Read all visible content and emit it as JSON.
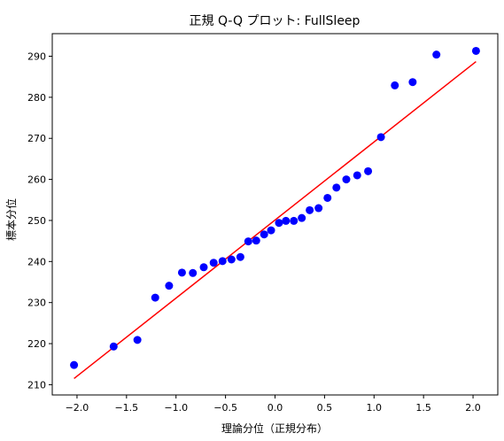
{
  "chart_data": {
    "type": "scatter",
    "title": "正規 Q-Q プロット: FullSleep",
    "xlabel": "理論分位（正規分布）",
    "ylabel": "標本分位",
    "xlim": [
      -2.25,
      2.25
    ],
    "ylim": [
      207.5,
      295.5
    ],
    "xticks": [
      -2.0,
      -1.5,
      -1.0,
      -0.5,
      0.0,
      0.5,
      1.0,
      1.5,
      2.0
    ],
    "xtick_labels": [
      "−2.0",
      "−1.5",
      "−1.0",
      "−0.5",
      "0.0",
      "0.5",
      "1.0",
      "1.5",
      "2.0"
    ],
    "yticks": [
      210,
      220,
      230,
      240,
      250,
      260,
      270,
      280,
      290
    ],
    "ytick_labels": [
      "210",
      "220",
      "230",
      "240",
      "250",
      "260",
      "270",
      "280",
      "290"
    ],
    "grid": false,
    "point_color": "#0000ff",
    "line_color": "#ff0000",
    "points": [
      {
        "x": -2.03,
        "y": 214.8
      },
      {
        "x": -1.63,
        "y": 219.3
      },
      {
        "x": -1.39,
        "y": 220.9
      },
      {
        "x": -1.21,
        "y": 231.2
      },
      {
        "x": -1.07,
        "y": 234.1
      },
      {
        "x": -0.94,
        "y": 237.3
      },
      {
        "x": -0.83,
        "y": 237.2
      },
      {
        "x": -0.72,
        "y": 238.6
      },
      {
        "x": -0.62,
        "y": 239.7
      },
      {
        "x": -0.53,
        "y": 240.1
      },
      {
        "x": -0.44,
        "y": 240.5
      },
      {
        "x": -0.35,
        "y": 241.1
      },
      {
        "x": -0.27,
        "y": 244.9
      },
      {
        "x": -0.19,
        "y": 245.1
      },
      {
        "x": -0.11,
        "y": 246.6
      },
      {
        "x": -0.04,
        "y": 247.6
      },
      {
        "x": 0.04,
        "y": 249.4
      },
      {
        "x": 0.11,
        "y": 249.9
      },
      {
        "x": 0.19,
        "y": 249.9
      },
      {
        "x": 0.27,
        "y": 250.6
      },
      {
        "x": 0.35,
        "y": 252.5
      },
      {
        "x": 0.44,
        "y": 253.0
      },
      {
        "x": 0.53,
        "y": 255.5
      },
      {
        "x": 0.62,
        "y": 258.0
      },
      {
        "x": 0.72,
        "y": 260.0
      },
      {
        "x": 0.83,
        "y": 261.0
      },
      {
        "x": 0.94,
        "y": 262.0
      },
      {
        "x": 1.07,
        "y": 270.3
      },
      {
        "x": 1.21,
        "y": 282.9
      },
      {
        "x": 1.39,
        "y": 283.7
      },
      {
        "x": 1.63,
        "y": 290.4
      },
      {
        "x": 2.03,
        "y": 291.3
      }
    ],
    "fit_line": {
      "x": [
        -2.03,
        2.03
      ],
      "y": [
        211.5,
        288.7
      ]
    }
  }
}
